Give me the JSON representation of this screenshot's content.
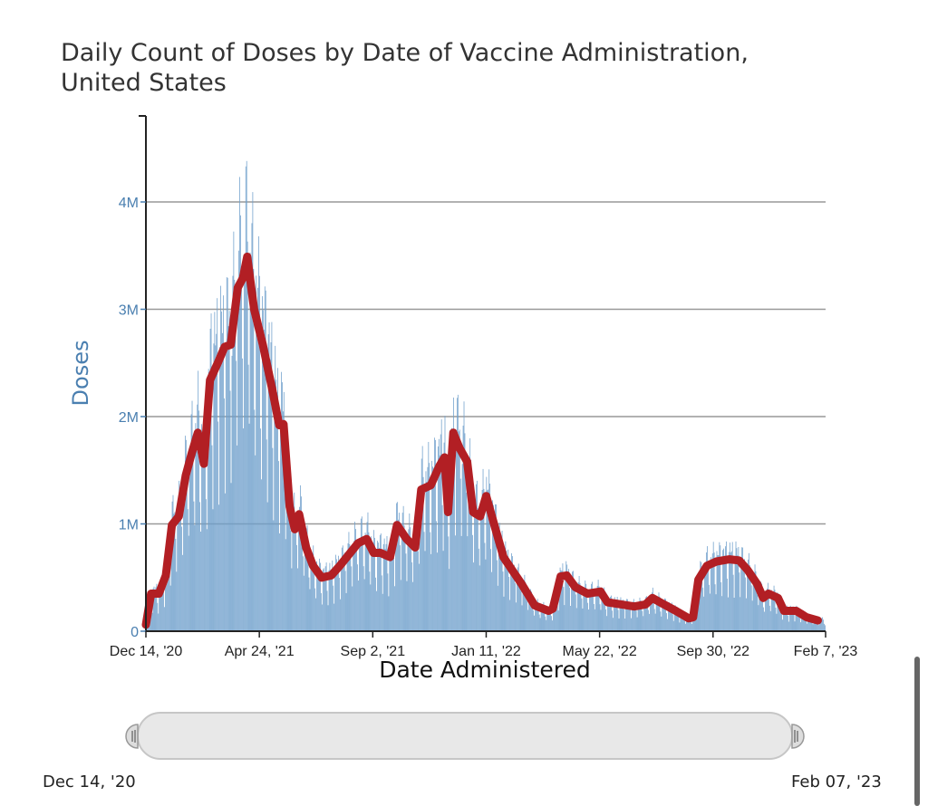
{
  "chart_data": {
    "type": "bar",
    "title": "Daily Count of Doses by Date of Vaccine Administration, United States",
    "xlabel": "Date Administered",
    "ylabel": "Doses",
    "xlim": [
      "2020-12-14",
      "2023-02-07"
    ],
    "ylim": [
      0,
      4800000
    ],
    "yticks": [
      {
        "value": 0,
        "label": "0"
      },
      {
        "value": 1000000,
        "label": "1M"
      },
      {
        "value": 2000000,
        "label": "2M"
      },
      {
        "value": 3000000,
        "label": "3M"
      },
      {
        "value": 4000000,
        "label": "4M"
      }
    ],
    "xticks": [
      {
        "date": "2020-12-14",
        "label": "Dec 14, '20"
      },
      {
        "date": "2021-04-24",
        "label": "Apr 24, '21"
      },
      {
        "date": "2021-09-02",
        "label": "Sep 2, '21"
      },
      {
        "date": "2022-01-11",
        "label": "Jan 11, '22"
      },
      {
        "date": "2022-05-22",
        "label": "May 22, '22"
      },
      {
        "date": "2022-09-30",
        "label": "Sep 30, '22"
      },
      {
        "date": "2023-02-07",
        "label": "Feb 7, '23"
      }
    ],
    "grid": true,
    "colors": {
      "bars": "#6e9fcb",
      "average_line": "#b21f24",
      "grid": "#999999",
      "tick_text": "#4a7fb0"
    },
    "series_note_unit": "millions of doses",
    "average_line": [
      [
        "2020-12-14",
        0.06
      ],
      [
        "2020-12-20",
        0.35
      ],
      [
        "2020-12-29",
        0.35
      ],
      [
        "2021-01-06",
        0.52
      ],
      [
        "2021-01-13",
        0.99
      ],
      [
        "2021-01-21",
        1.07
      ],
      [
        "2021-01-29",
        1.45
      ],
      [
        "2021-02-05",
        1.66
      ],
      [
        "2021-02-12",
        1.85
      ],
      [
        "2021-02-19",
        1.56
      ],
      [
        "2021-02-26",
        2.34
      ],
      [
        "2021-03-07",
        2.5
      ],
      [
        "2021-03-15",
        2.65
      ],
      [
        "2021-03-22",
        2.67
      ],
      [
        "2021-03-30",
        3.2
      ],
      [
        "2021-04-05",
        3.29
      ],
      [
        "2021-04-10",
        3.49
      ],
      [
        "2021-04-18",
        3.0
      ],
      [
        "2021-04-28",
        2.67
      ],
      [
        "2021-05-09",
        2.25
      ],
      [
        "2021-05-17",
        1.92
      ],
      [
        "2021-05-22",
        1.93
      ],
      [
        "2021-05-29",
        1.16
      ],
      [
        "2021-06-04",
        0.95
      ],
      [
        "2021-06-09",
        1.09
      ],
      [
        "2021-06-17",
        0.78
      ],
      [
        "2021-06-25",
        0.61
      ],
      [
        "2021-07-05",
        0.5
      ],
      [
        "2021-07-16",
        0.52
      ],
      [
        "2021-07-26",
        0.61
      ],
      [
        "2021-08-06",
        0.72
      ],
      [
        "2021-08-16",
        0.82
      ],
      [
        "2021-08-26",
        0.86
      ],
      [
        "2021-09-03",
        0.73
      ],
      [
        "2021-09-11",
        0.73
      ],
      [
        "2021-09-22",
        0.69
      ],
      [
        "2021-09-30",
        0.99
      ],
      [
        "2021-10-11",
        0.86
      ],
      [
        "2021-10-21",
        0.78
      ],
      [
        "2021-10-28",
        1.32
      ],
      [
        "2021-11-08",
        1.36
      ],
      [
        "2021-11-18",
        1.54
      ],
      [
        "2021-11-24",
        1.62
      ],
      [
        "2021-11-28",
        1.11
      ],
      [
        "2021-12-04",
        1.85
      ],
      [
        "2021-12-11",
        1.71
      ],
      [
        "2021-12-20",
        1.58
      ],
      [
        "2021-12-27",
        1.11
      ],
      [
        "2022-01-04",
        1.07
      ],
      [
        "2022-01-11",
        1.26
      ],
      [
        "2022-01-20",
        1.0
      ],
      [
        "2022-01-31",
        0.69
      ],
      [
        "2022-02-10",
        0.57
      ],
      [
        "2022-02-21",
        0.44
      ],
      [
        "2022-03-08",
        0.24
      ],
      [
        "2022-03-24",
        0.19
      ],
      [
        "2022-03-29",
        0.21
      ],
      [
        "2022-04-07",
        0.51
      ],
      [
        "2022-04-14",
        0.52
      ],
      [
        "2022-04-24",
        0.41
      ],
      [
        "2022-05-08",
        0.35
      ],
      [
        "2022-05-23",
        0.37
      ],
      [
        "2022-05-31",
        0.27
      ],
      [
        "2022-06-16",
        0.25
      ],
      [
        "2022-07-01",
        0.23
      ],
      [
        "2022-07-14",
        0.25
      ],
      [
        "2022-07-22",
        0.31
      ],
      [
        "2022-08-02",
        0.26
      ],
      [
        "2022-08-18",
        0.19
      ],
      [
        "2022-09-02",
        0.12
      ],
      [
        "2022-09-07",
        0.13
      ],
      [
        "2022-09-13",
        0.48
      ],
      [
        "2022-09-23",
        0.61
      ],
      [
        "2022-10-04",
        0.65
      ],
      [
        "2022-10-19",
        0.67
      ],
      [
        "2022-10-30",
        0.66
      ],
      [
        "2022-11-09",
        0.57
      ],
      [
        "2022-11-20",
        0.44
      ],
      [
        "2022-11-27",
        0.31
      ],
      [
        "2022-12-03",
        0.35
      ],
      [
        "2022-12-14",
        0.31
      ],
      [
        "2022-12-21",
        0.19
      ],
      [
        "2023-01-04",
        0.19
      ],
      [
        "2023-01-16",
        0.13
      ],
      [
        "2023-01-29",
        0.1
      ]
    ]
  },
  "title_line1": "Daily Count of Doses by Date of Vaccine Administration,",
  "title_line2": "United States",
  "range_selector": {
    "start_label": "Dec 14, '20",
    "end_label": "Feb 07, '23"
  }
}
